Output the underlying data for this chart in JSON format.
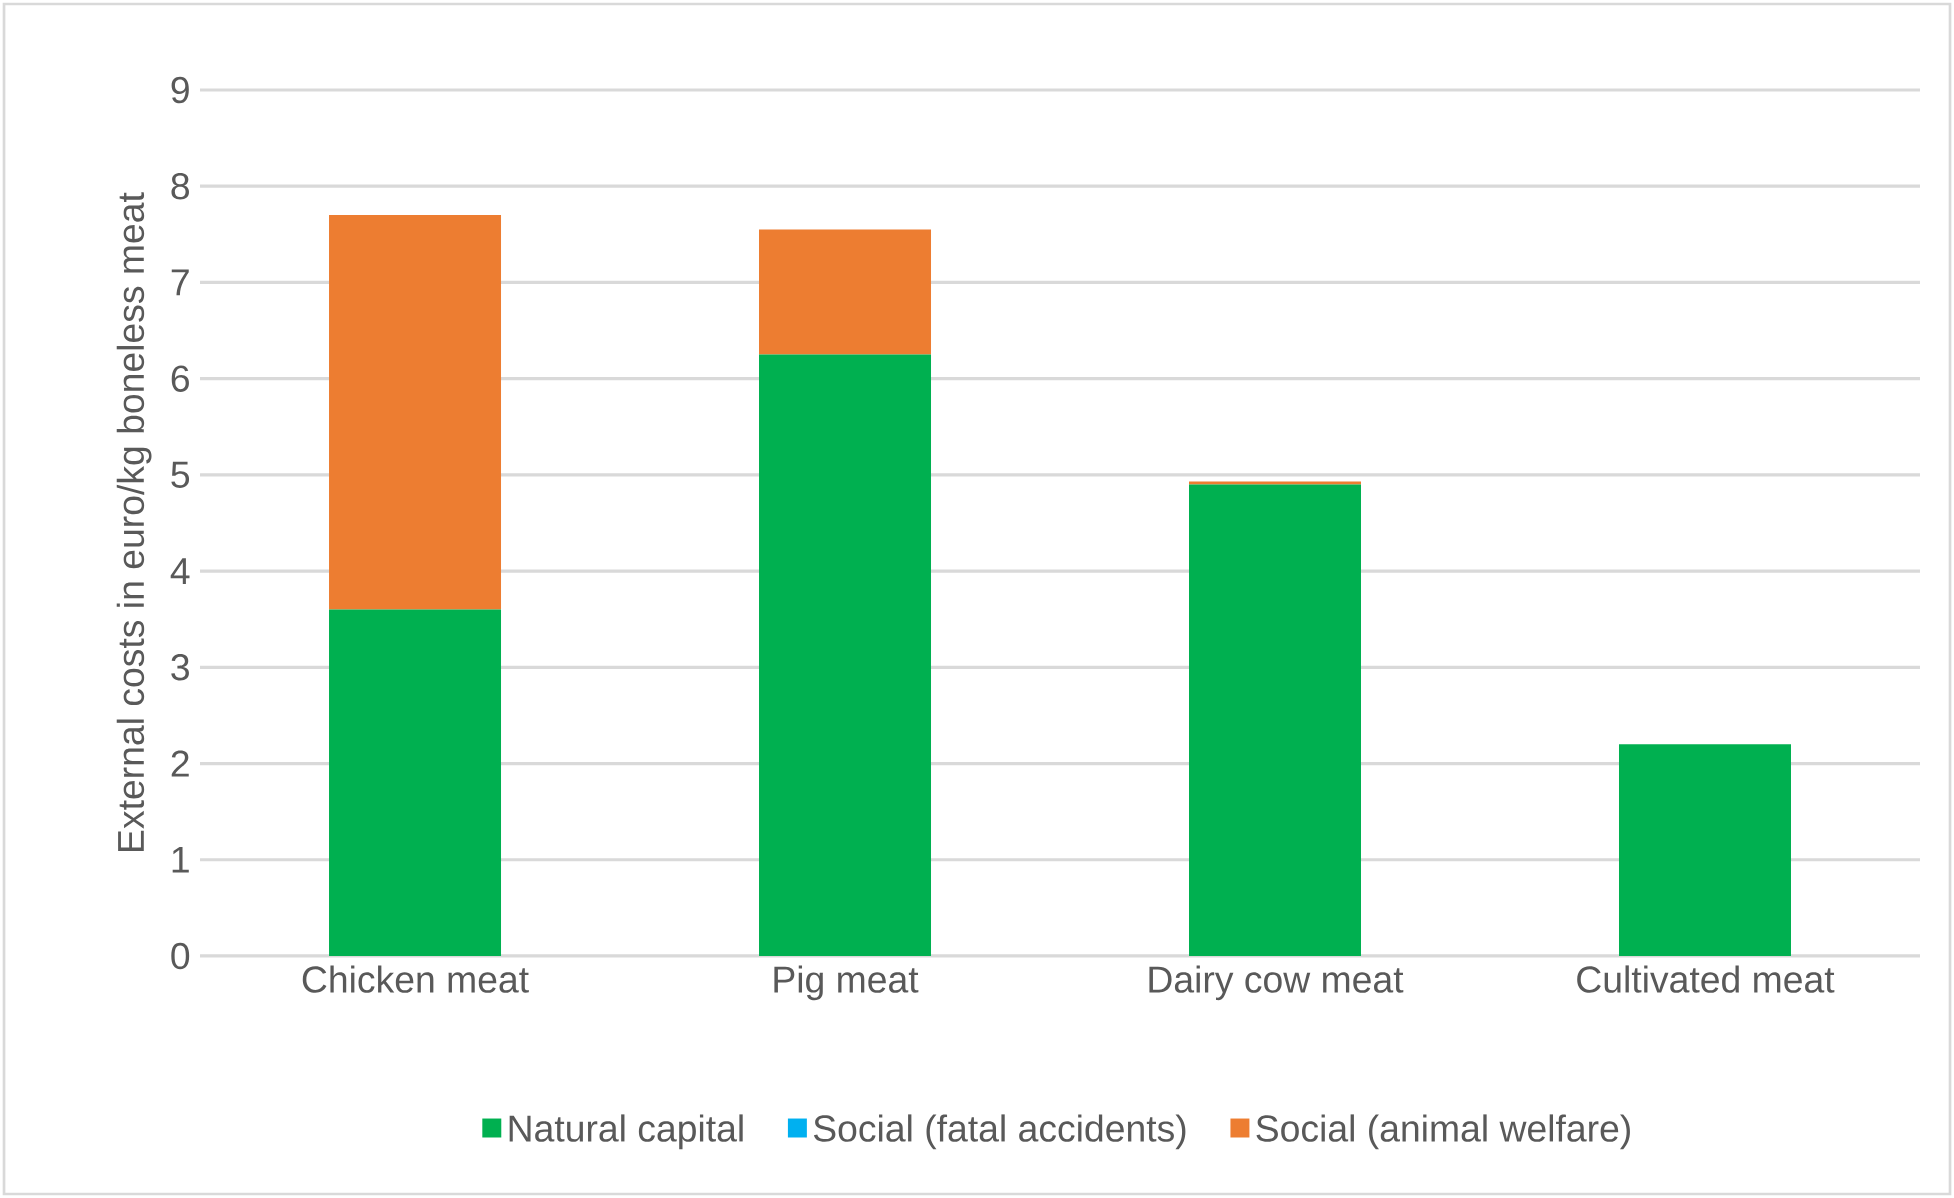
{
  "chart_data": {
    "type": "bar",
    "stacked": true,
    "ylabel": "External costs in euro/kg boneless meat",
    "categories": [
      "Chicken meat",
      "Pig meat",
      "Dairy cow meat",
      "Cultivated meat"
    ],
    "series": [
      {
        "name": "Natural capital",
        "color": "#00b050",
        "values": [
          3.6,
          6.25,
          4.9,
          2.2
        ]
      },
      {
        "name": "Social (fatal accidents)",
        "color": "#00b0f0",
        "values": [
          0,
          0,
          0,
          0
        ]
      },
      {
        "name": "Social (animal welfare)",
        "color": "#ed7d31",
        "values": [
          4.1,
          1.3,
          0.03,
          0
        ]
      }
    ],
    "ylim": [
      0,
      9
    ],
    "yticks": [
      0,
      1,
      2,
      3,
      4,
      5,
      6,
      7,
      8,
      9
    ],
    "grid": "y",
    "legend": "bottom"
  }
}
